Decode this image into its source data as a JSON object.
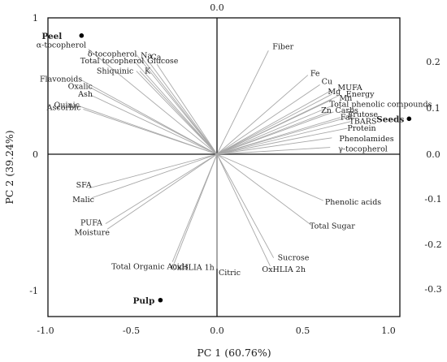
{
  "chart_data": {
    "type": "scatter",
    "title": "",
    "xlabel": "PC 1 (60.76%)",
    "ylabel": "PC 2 (39.24%)",
    "xlim": [
      -1.0,
      1.3
    ],
    "ylim": [
      -1.2,
      1.05
    ],
    "x_ticks": [
      "-1.0",
      "-0.5",
      "0.0",
      "0.5",
      "1.0"
    ],
    "y_ticks_left": [
      "1",
      "0",
      "-1"
    ],
    "y_ticks_right": [
      "0.2",
      "0.1",
      "0.0",
      "-0.1",
      "-0.2",
      "-0.3"
    ],
    "top_tick": "0.0",
    "grid": false,
    "observations": [
      {
        "name": "Peel",
        "x": -0.79,
        "y": 0.87
      },
      {
        "name": "Seeds",
        "x": 1.12,
        "y": 0.26
      },
      {
        "name": "Pulp",
        "x": -0.33,
        "y": -1.07
      }
    ],
    "variables": [
      {
        "name": "α-tocopherol",
        "x": -0.75,
        "y": 0.77
      },
      {
        "name": "δ-tocopherol",
        "x": -0.47,
        "y": 0.73
      },
      {
        "name": "Na",
        "x": -0.44,
        "y": 0.71
      },
      {
        "name": "Ca",
        "x": -0.41,
        "y": 0.7
      },
      {
        "name": "Glucose",
        "x": -0.35,
        "y": 0.66
      },
      {
        "name": "Total tocopherol",
        "x": -0.48,
        "y": 0.68
      },
      {
        "name": "Shiquinic",
        "x": -0.47,
        "y": 0.61
      },
      {
        "name": "K",
        "x": -0.45,
        "y": 0.61
      },
      {
        "name": "Flavonoids",
        "x": -0.8,
        "y": 0.55
      },
      {
        "name": "Oxalic",
        "x": -0.74,
        "y": 0.49
      },
      {
        "name": "Ash",
        "x": -0.73,
        "y": 0.43
      },
      {
        "name": "Quinic",
        "x": -0.82,
        "y": 0.36
      },
      {
        "name": "Ascorbic",
        "x": -0.78,
        "y": 0.33
      },
      {
        "name": "Fiber",
        "x": 0.3,
        "y": 0.76
      },
      {
        "name": "Fe",
        "x": 0.53,
        "y": 0.58
      },
      {
        "name": "Cu",
        "x": 0.6,
        "y": 0.51
      },
      {
        "name": "MUFA",
        "x": 0.67,
        "y": 0.47
      },
      {
        "name": "Mg",
        "x": 0.67,
        "y": 0.44
      },
      {
        "name": "Energy",
        "x": 0.71,
        "y": 0.43
      },
      {
        "name": "Mn",
        "x": 0.67,
        "y": 0.4
      },
      {
        "name": "Total phenolic compounds",
        "x": 0.68,
        "y": 0.36
      },
      {
        "name": "Zn",
        "x": 0.65,
        "y": 0.31
      },
      {
        "name": "Carbs",
        "x": 0.68,
        "y": 0.31
      },
      {
        "name": "Fat",
        "x": 0.72,
        "y": 0.27
      },
      {
        "name": "Frutose",
        "x": 0.79,
        "y": 0.28
      },
      {
        "name": "TBARS",
        "x": 0.78,
        "y": 0.24
      },
      {
        "name": "Protein",
        "x": 0.76,
        "y": 0.19
      },
      {
        "name": "Phenolamides",
        "x": 0.67,
        "y": 0.12
      },
      {
        "name": "γ-tocopherol",
        "x": 0.66,
        "y": 0.05
      },
      {
        "name": "Phenolic acids",
        "x": 0.62,
        "y": -0.34
      },
      {
        "name": "Total Sugar",
        "x": 0.55,
        "y": -0.52
      },
      {
        "name": "Sucrose",
        "x": 0.33,
        "y": -0.76
      },
      {
        "name": "OxHLIA 2h",
        "x": 0.31,
        "y": -0.82
      },
      {
        "name": "Citric",
        "x": 0.0,
        "y": -0.84
      },
      {
        "name": "OxHLIA 1h",
        "x": -0.25,
        "y": -0.8
      },
      {
        "name": "Total Organic Acids",
        "x": -0.26,
        "y": -0.79
      },
      {
        "name": "SFA",
        "x": -0.75,
        "y": -0.25
      },
      {
        "name": "Malic",
        "x": -0.73,
        "y": -0.32
      },
      {
        "name": "PUFA",
        "x": -0.65,
        "y": -0.51
      },
      {
        "name": "Moisture",
        "x": -0.64,
        "y": -0.55
      }
    ]
  }
}
